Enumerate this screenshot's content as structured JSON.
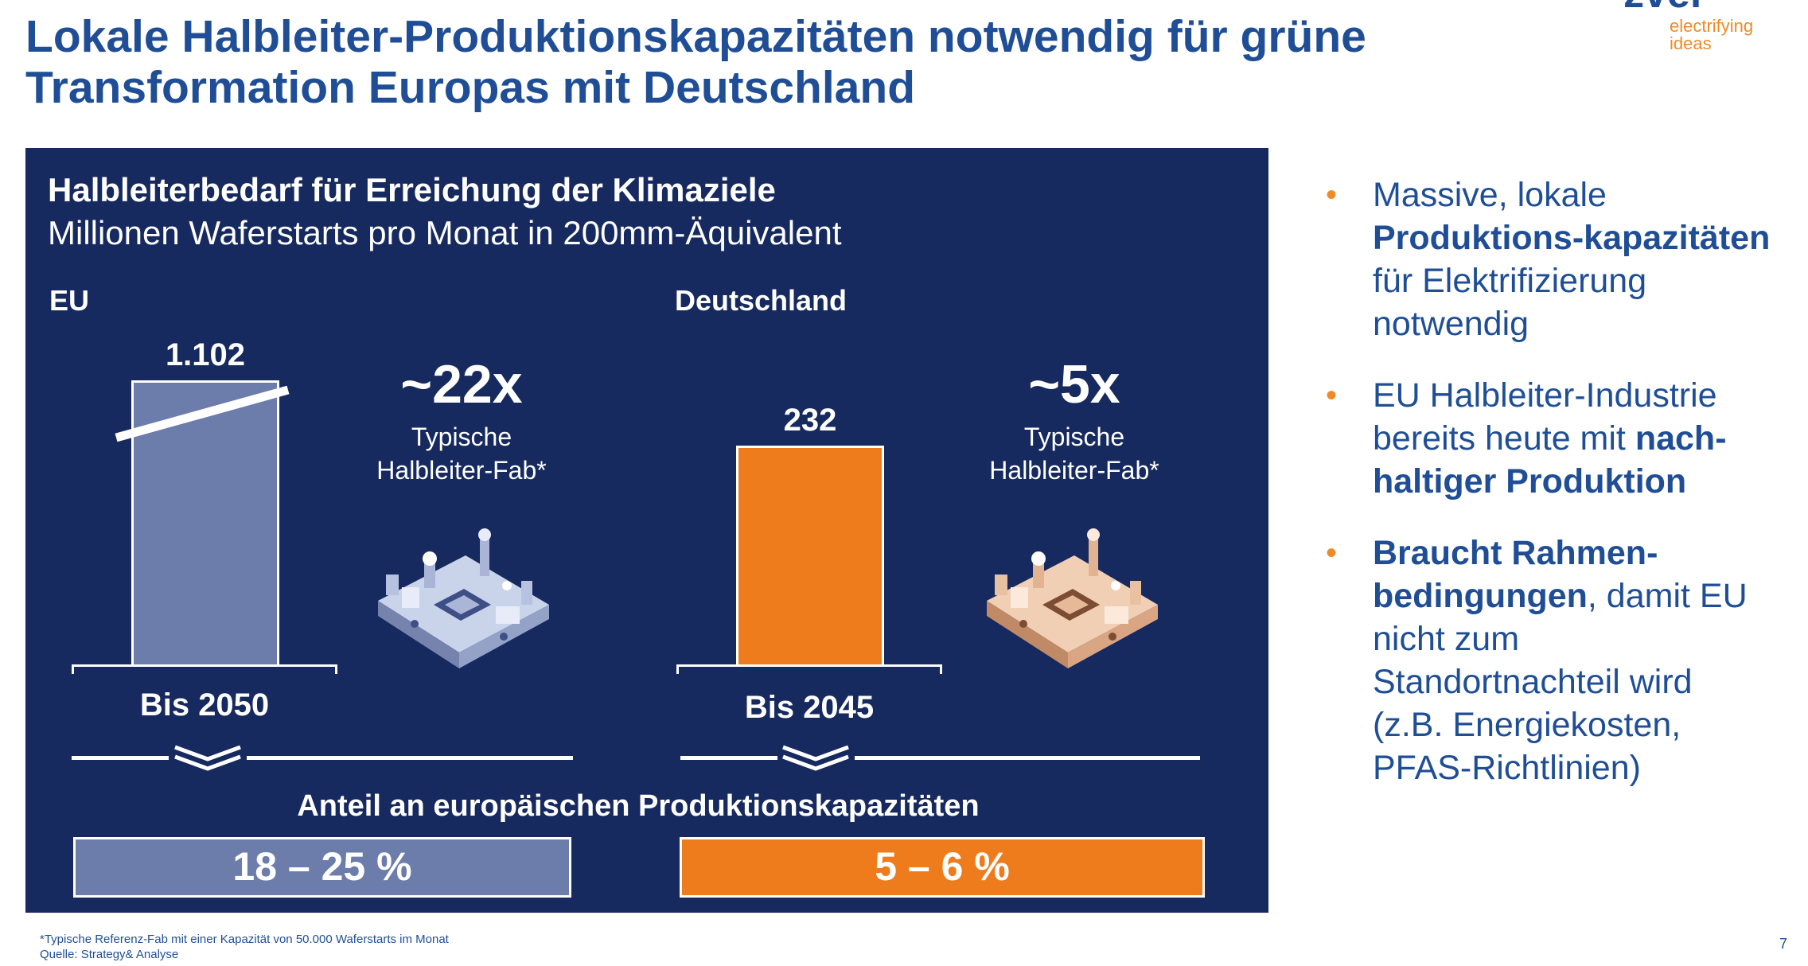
{
  "header": {
    "title_line1": "Lokale Halbleiter-Produktionskapazitäten notwendig für grüne",
    "title_line2": "Transformation Europas mit Deutschland",
    "logo_wordmark": "zvei",
    "logo_line1": "electrifying",
    "logo_line2": "ideas"
  },
  "panel": {
    "title": "Halbleiterbedarf für Erreichung der Klimaziele",
    "subtitle": "Millionen Waferstarts pro Monat in 200mm-Äquivalent",
    "share_heading": "Anteil an europäischen Produktionskapazitäten"
  },
  "chart_data": {
    "type": "bar",
    "title": "Halbleiterbedarf für Erreichung der Klimaziele",
    "subtitle": "Millionen Waferstarts pro Monat in 200mm-Äquivalent",
    "axis_break_on": "EU",
    "groups": [
      {
        "region": "EU",
        "period": "Bis 2050",
        "value": 1102,
        "value_label": "1.102",
        "multiple": "~22x",
        "multiple_label": "Typische\nHalbleiter-Fab*",
        "share": "18 – 25 %",
        "color": "#6c7cab"
      },
      {
        "region": "Deutschland",
        "period": "Bis 2045",
        "value": 232,
        "value_label": "232",
        "multiple": "~5x",
        "multiple_label": "Typische\nHalbleiter-Fab*",
        "share": "5 – 6 %",
        "color": "#ee7c1d"
      }
    ]
  },
  "bullets": [
    {
      "parts": [
        {
          "t": "Massive, lokale ",
          "b": false
        },
        {
          "t": "Produktions-kapazitäten",
          "b": true
        },
        {
          "t": " für Elektrifizierung notwendig",
          "b": false
        }
      ]
    },
    {
      "parts": [
        {
          "t": "EU Halbleiter-Industrie bereits heute mit ",
          "b": false
        },
        {
          "t": "nach-haltiger Produktion",
          "b": true
        }
      ]
    },
    {
      "parts": [
        {
          "t": "Braucht Rahmen-bedingungen",
          "b": true
        },
        {
          "t": ", damit EU nicht zum Standortnachteil wird (z.B. Energiekosten, PFAS-Richtlinien)",
          "b": false
        }
      ]
    }
  ],
  "footer": {
    "note": "*Typische Referenz-Fab mit einer Kapazität von 50.000 Waferstarts im Monat",
    "source": "Quelle: Strategy& Analyse",
    "page": "7"
  },
  "colors": {
    "navy": "#172a5f",
    "brand_blue": "#1f4e96",
    "orange": "#ee7c1d",
    "eu_blue": "#6c7cab"
  },
  "icons": [
    "circuit-board-icon-blue",
    "circuit-board-icon-orange",
    "double-chevron-down-icon"
  ]
}
